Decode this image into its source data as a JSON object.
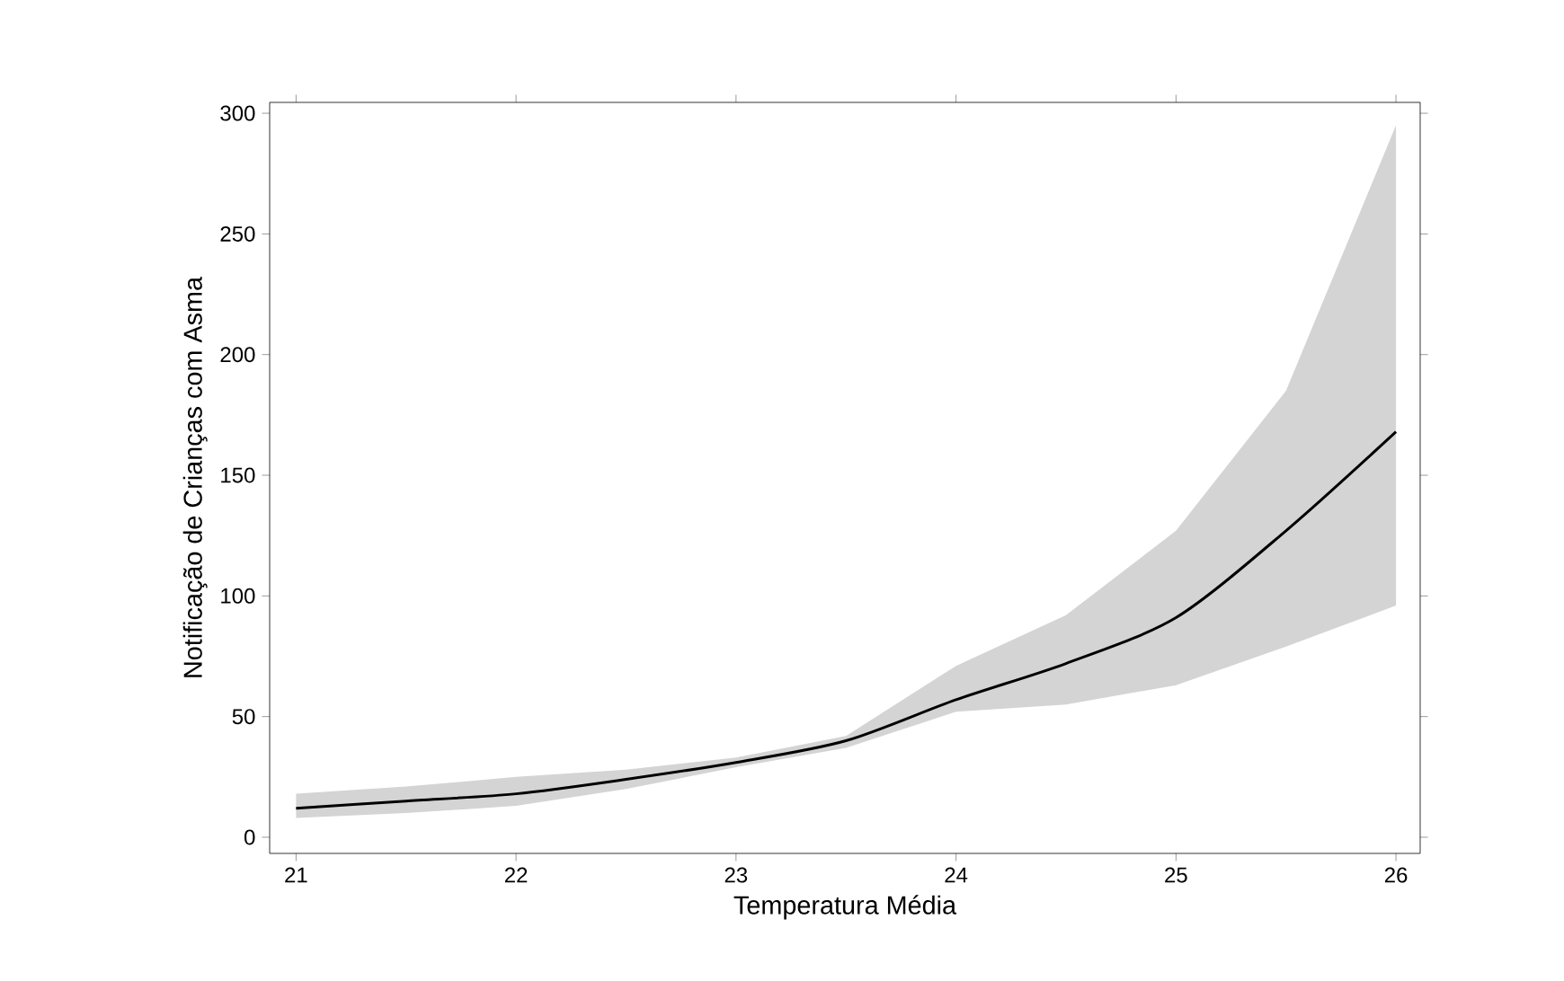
{
  "chart_data": {
    "type": "line",
    "xlabel": "Temperatura Média",
    "ylabel": "Notificação de Crianças com Asma",
    "xlim": [
      20.88,
      26.11
    ],
    "ylim": [
      -6.7,
      304.5
    ],
    "xticks": [
      21,
      22,
      23,
      24,
      25,
      26
    ],
    "yticks": [
      0,
      50,
      100,
      150,
      200,
      250,
      300
    ],
    "grid": false,
    "series": [
      {
        "color": "#000000",
        "x": [
          21,
          21.5,
          22,
          22.5,
          23,
          23.5,
          24,
          24.5,
          25,
          25.5,
          26
        ],
        "values": [
          12,
          15,
          18,
          24,
          31,
          40,
          57,
          72,
          91,
          127,
          168
        ],
        "lower": [
          8,
          10,
          13,
          20,
          29,
          37,
          52,
          55,
          63,
          79,
          96
        ],
        "upper": [
          18,
          21,
          25,
          28,
          33,
          42,
          71,
          92,
          127,
          185,
          295
        ]
      }
    ]
  }
}
